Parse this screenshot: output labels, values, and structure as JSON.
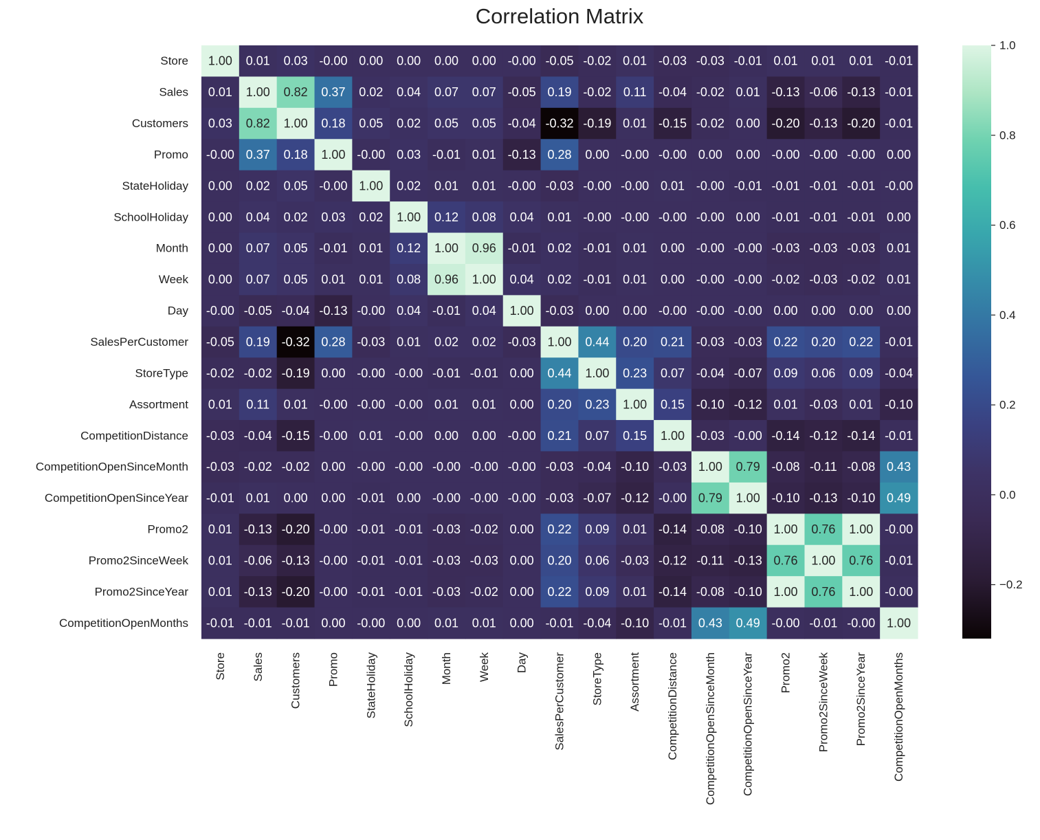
{
  "chart_data": {
    "type": "heatmap",
    "title": "Correlation Matrix",
    "xlabel": "",
    "ylabel": "",
    "colormap": "mako",
    "colorbar": {
      "min": -0.32,
      "max": 1.0,
      "ticks": [
        "1.0",
        "0.8",
        "0.6",
        "0.4",
        "0.2",
        "0.0",
        "−0.2"
      ],
      "tick_values": [
        1.0,
        0.8,
        0.6,
        0.4,
        0.2,
        0.0,
        -0.2
      ]
    },
    "variables": [
      "Store",
      "Sales",
      "Customers",
      "Promo",
      "StateHoliday",
      "SchoolHoliday",
      "Month",
      "Week",
      "Day",
      "SalesPerCustomer",
      "StoreType",
      "Assortment",
      "CompetitionDistance",
      "CompetitionOpenSinceMonth",
      "CompetitionOpenSinceYear",
      "Promo2",
      "Promo2SinceWeek",
      "Promo2SinceYear",
      "CompetitionOpenMonths"
    ],
    "labels": [
      [
        "1.00",
        "0.01",
        "0.03",
        "-0.00",
        "0.00",
        "0.00",
        "0.00",
        "0.00",
        "-0.00",
        "-0.05",
        "-0.02",
        "0.01",
        "-0.03",
        "-0.03",
        "-0.01",
        "0.01",
        "0.01",
        "0.01",
        "-0.01"
      ],
      [
        "0.01",
        "1.00",
        "0.82",
        "0.37",
        "0.02",
        "0.04",
        "0.07",
        "0.07",
        "-0.05",
        "0.19",
        "-0.02",
        "0.11",
        "-0.04",
        "-0.02",
        "0.01",
        "-0.13",
        "-0.06",
        "-0.13",
        "-0.01"
      ],
      [
        "0.03",
        "0.82",
        "1.00",
        "0.18",
        "0.05",
        "0.02",
        "0.05",
        "0.05",
        "-0.04",
        "-0.32",
        "-0.19",
        "0.01",
        "-0.15",
        "-0.02",
        "0.00",
        "-0.20",
        "-0.13",
        "-0.20",
        "-0.01"
      ],
      [
        "-0.00",
        "0.37",
        "0.18",
        "1.00",
        "-0.00",
        "0.03",
        "-0.01",
        "0.01",
        "-0.13",
        "0.28",
        "0.00",
        "-0.00",
        "-0.00",
        "0.00",
        "0.00",
        "-0.00",
        "-0.00",
        "-0.00",
        "0.00"
      ],
      [
        "0.00",
        "0.02",
        "0.05",
        "-0.00",
        "1.00",
        "0.02",
        "0.01",
        "0.01",
        "-0.00",
        "-0.03",
        "-0.00",
        "-0.00",
        "0.01",
        "-0.00",
        "-0.01",
        "-0.01",
        "-0.01",
        "-0.01",
        "-0.00"
      ],
      [
        "0.00",
        "0.04",
        "0.02",
        "0.03",
        "0.02",
        "1.00",
        "0.12",
        "0.08",
        "0.04",
        "0.01",
        "-0.00",
        "-0.00",
        "-0.00",
        "-0.00",
        "0.00",
        "-0.01",
        "-0.01",
        "-0.01",
        "0.00"
      ],
      [
        "0.00",
        "0.07",
        "0.05",
        "-0.01",
        "0.01",
        "0.12",
        "1.00",
        "0.96",
        "-0.01",
        "0.02",
        "-0.01",
        "0.01",
        "0.00",
        "-0.00",
        "-0.00",
        "-0.03",
        "-0.03",
        "-0.03",
        "0.01"
      ],
      [
        "0.00",
        "0.07",
        "0.05",
        "0.01",
        "0.01",
        "0.08",
        "0.96",
        "1.00",
        "0.04",
        "0.02",
        "-0.01",
        "0.01",
        "0.00",
        "-0.00",
        "-0.00",
        "-0.02",
        "-0.03",
        "-0.02",
        "0.01"
      ],
      [
        "-0.00",
        "-0.05",
        "-0.04",
        "-0.13",
        "-0.00",
        "0.04",
        "-0.01",
        "0.04",
        "1.00",
        "-0.03",
        "0.00",
        "0.00",
        "-0.00",
        "-0.00",
        "-0.00",
        "0.00",
        "0.00",
        "0.00",
        "0.00"
      ],
      [
        "-0.05",
        "0.19",
        "-0.32",
        "0.28",
        "-0.03",
        "0.01",
        "0.02",
        "0.02",
        "-0.03",
        "1.00",
        "0.44",
        "0.20",
        "0.21",
        "-0.03",
        "-0.03",
        "0.22",
        "0.20",
        "0.22",
        "-0.01"
      ],
      [
        "-0.02",
        "-0.02",
        "-0.19",
        "0.00",
        "-0.00",
        "-0.00",
        "-0.01",
        "-0.01",
        "0.00",
        "0.44",
        "1.00",
        "0.23",
        "0.07",
        "-0.04",
        "-0.07",
        "0.09",
        "0.06",
        "0.09",
        "-0.04"
      ],
      [
        "0.01",
        "0.11",
        "0.01",
        "-0.00",
        "-0.00",
        "-0.00",
        "0.01",
        "0.01",
        "0.00",
        "0.20",
        "0.23",
        "1.00",
        "0.15",
        "-0.10",
        "-0.12",
        "0.01",
        "-0.03",
        "0.01",
        "-0.10"
      ],
      [
        "-0.03",
        "-0.04",
        "-0.15",
        "-0.00",
        "0.01",
        "-0.00",
        "0.00",
        "0.00",
        "-0.00",
        "0.21",
        "0.07",
        "0.15",
        "1.00",
        "-0.03",
        "-0.00",
        "-0.14",
        "-0.12",
        "-0.14",
        "-0.01"
      ],
      [
        "-0.03",
        "-0.02",
        "-0.02",
        "0.00",
        "-0.00",
        "-0.00",
        "-0.00",
        "-0.00",
        "-0.00",
        "-0.03",
        "-0.04",
        "-0.10",
        "-0.03",
        "1.00",
        "0.79",
        "-0.08",
        "-0.11",
        "-0.08",
        "0.43"
      ],
      [
        "-0.01",
        "0.01",
        "0.00",
        "0.00",
        "-0.01",
        "0.00",
        "-0.00",
        "-0.00",
        "-0.00",
        "-0.03",
        "-0.07",
        "-0.12",
        "-0.00",
        "0.79",
        "1.00",
        "-0.10",
        "-0.13",
        "-0.10",
        "0.49"
      ],
      [
        "0.01",
        "-0.13",
        "-0.20",
        "-0.00",
        "-0.01",
        "-0.01",
        "-0.03",
        "-0.02",
        "0.00",
        "0.22",
        "0.09",
        "0.01",
        "-0.14",
        "-0.08",
        "-0.10",
        "1.00",
        "0.76",
        "1.00",
        "-0.00"
      ],
      [
        "0.01",
        "-0.06",
        "-0.13",
        "-0.00",
        "-0.01",
        "-0.01",
        "-0.03",
        "-0.03",
        "0.00",
        "0.20",
        "0.06",
        "-0.03",
        "-0.12",
        "-0.11",
        "-0.13",
        "0.76",
        "1.00",
        "0.76",
        "-0.01"
      ],
      [
        "0.01",
        "-0.13",
        "-0.20",
        "-0.00",
        "-0.01",
        "-0.01",
        "-0.03",
        "-0.02",
        "0.00",
        "0.22",
        "0.09",
        "0.01",
        "-0.14",
        "-0.08",
        "-0.10",
        "1.00",
        "0.76",
        "1.00",
        "-0.00"
      ],
      [
        "-0.01",
        "-0.01",
        "-0.01",
        "0.00",
        "-0.00",
        "0.00",
        "0.01",
        "0.01",
        "0.00",
        "-0.01",
        "-0.04",
        "-0.10",
        "-0.01",
        "0.43",
        "0.49",
        "-0.00",
        "-0.01",
        "-0.00",
        "1.00"
      ]
    ]
  }
}
